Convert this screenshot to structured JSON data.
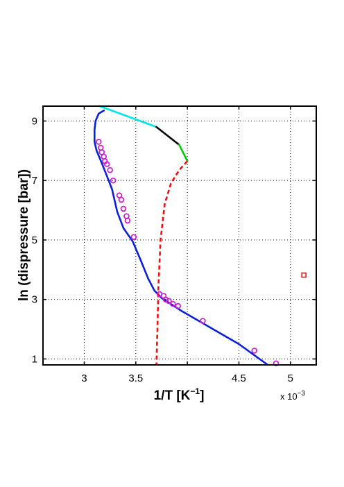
{
  "chart_data": {
    "type": "line",
    "title": "",
    "xlabel": "1/T  [K",
    "xlabel_sup": "−1",
    "xlabel_close": "]",
    "ylabel": "ln (dispressure [bar])",
    "x_multiplier_label": "x 10",
    "x_multiplier_sup": "−3",
    "xlim": [
      2.6,
      5.25
    ],
    "ylim": [
      0.8,
      9.5
    ],
    "x_ticks": [
      3,
      3.5,
      4,
      4.5,
      5
    ],
    "x_tick_labels": [
      "3",
      "3.5",
      "",
      "4.5",
      "5"
    ],
    "y_ticks": [
      1,
      3,
      5,
      7,
      9
    ],
    "y_tick_labels": [
      "1",
      "3",
      "5",
      "7",
      "9"
    ],
    "grid": true,
    "series": [
      {
        "style": "line",
        "color": "#0a1fd6",
        "points": [
          [
            4.78,
            0.8
          ],
          [
            4.5,
            1.5
          ],
          [
            4.2,
            2.1
          ],
          [
            3.95,
            2.6
          ],
          [
            3.75,
            3.05
          ],
          [
            3.68,
            3.3
          ],
          [
            3.62,
            3.7
          ],
          [
            3.55,
            4.3
          ],
          [
            3.47,
            4.95
          ],
          [
            3.38,
            5.4
          ],
          [
            3.32,
            5.95
          ],
          [
            3.27,
            6.7
          ],
          [
            3.22,
            7.15
          ],
          [
            3.18,
            7.5
          ],
          [
            3.15,
            7.75
          ],
          [
            3.12,
            8.0
          ],
          [
            3.1,
            8.3
          ],
          [
            3.1,
            8.7
          ],
          [
            3.11,
            9.0
          ],
          [
            3.14,
            9.25
          ],
          [
            3.19,
            9.35
          ]
        ]
      },
      {
        "style": "line",
        "color": "#00e5e5",
        "points": [
          [
            3.15,
            9.5
          ],
          [
            3.7,
            8.8
          ]
        ]
      },
      {
        "style": "line",
        "color": "#000000",
        "points": [
          [
            3.7,
            8.8
          ],
          [
            3.92,
            8.2
          ]
        ]
      },
      {
        "style": "line",
        "color": "#00cc00",
        "points": [
          [
            3.92,
            8.2
          ],
          [
            4.0,
            7.65
          ]
        ]
      },
      {
        "style": "dashed",
        "color": "#ee1111",
        "points": [
          [
            4.0,
            7.65
          ],
          [
            3.92,
            7.35
          ],
          [
            3.84,
            6.9
          ],
          [
            3.78,
            6.2
          ],
          [
            3.74,
            5.0
          ],
          [
            3.72,
            3.5
          ],
          [
            3.71,
            2.0
          ],
          [
            3.7,
            0.8
          ]
        ]
      },
      {
        "style": "markers",
        "color": "#cc22cc",
        "points": [
          [
            3.14,
            8.3
          ],
          [
            3.16,
            8.1
          ],
          [
            3.17,
            7.95
          ],
          [
            3.19,
            7.8
          ],
          [
            3.2,
            7.65
          ],
          [
            3.22,
            7.55
          ],
          [
            3.25,
            7.35
          ],
          [
            3.28,
            7.0
          ],
          [
            3.34,
            6.5
          ],
          [
            3.36,
            6.35
          ],
          [
            3.38,
            6.05
          ],
          [
            3.41,
            5.8
          ],
          [
            3.42,
            5.65
          ],
          [
            3.48,
            5.1
          ],
          [
            3.73,
            3.18
          ],
          [
            3.77,
            3.12
          ],
          [
            3.79,
            3.0
          ],
          [
            3.82,
            2.95
          ],
          [
            3.86,
            2.85
          ],
          [
            3.91,
            2.78
          ],
          [
            4.15,
            2.28
          ],
          [
            4.65,
            1.28
          ],
          [
            4.86,
            0.85
          ]
        ]
      },
      {
        "style": "square",
        "color": "#ee1111",
        "points": [
          [
            5.13,
            3.82
          ]
        ]
      }
    ]
  }
}
